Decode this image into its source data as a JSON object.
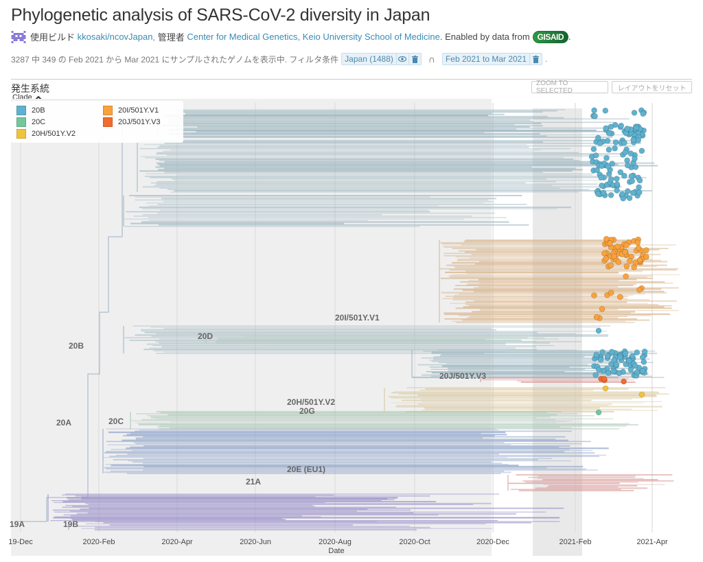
{
  "header": {
    "title": "Phylogenetic analysis of SARS-CoV-2 diversity in Japan",
    "build_prefix": "使用ビルド",
    "build_link": "kkosaki/ncovJapan",
    "maintainer_prefix": ". 管理者",
    "maintainer_link": "Center for Medical Genetics, Keio University School of Medicine",
    "data_prefix": ". Enabled by data from",
    "data_source": "GISAID",
    "data_suffix": "."
  },
  "filter": {
    "summary": "3287 中 349 の Feb 2021 から Mar 2021 にサンプルされたゲノムを表示中. フィルタ条件",
    "filters": [
      {
        "label": "Japan (1488)",
        "has_eye": true
      },
      {
        "label": "Feb 2021 to Mar 2021",
        "has_eye": false
      }
    ],
    "intersection_symbol": "∩",
    "suffix": "."
  },
  "panel": {
    "title": "発生系統",
    "zoom_button": "ZOOM TO SELECTED",
    "reset_button": "レイアウトをリセット",
    "legend_toggle": "Clade",
    "legend": [
      {
        "label": "20B",
        "color": "#5fb2cf"
      },
      {
        "label": "20C",
        "color": "#74c69d"
      },
      {
        "label": "20H/501Y.V2",
        "color": "#f3c23c"
      },
      {
        "label": "20I/501Y.V1",
        "color": "#f9a23c"
      },
      {
        "label": "20J/501Y.V3",
        "color": "#f26b2f"
      }
    ]
  },
  "chart_data": {
    "type": "phylogenetic-tree",
    "xlabel": "Date",
    "x_ticks": [
      "19-Dec",
      "2020-Feb",
      "2020-Apr",
      "2020-Jun",
      "2020-Aug",
      "2020-Oct",
      "2020-Dec",
      "2021-Feb",
      "2021-Apr"
    ],
    "x_range": [
      "2019-12",
      "2021-05"
    ],
    "selected_range": [
      "2021-01-20",
      "2021-03-01"
    ],
    "clade_labels": [
      "19A",
      "19B",
      "20A",
      "20B",
      "20C",
      "20D",
      "20G",
      "20H/501Y.V2",
      "20I/501Y.V1",
      "20J/501Y.V3",
      "20E (EU1)",
      "21A"
    ],
    "branch_colors": {
      "20B": "#98b3bd",
      "20I/501Y.V1": "#d7b38a",
      "20J/501Y.V3": "#98b3bd",
      "20H/501Y.V2": "#d9c69a",
      "20C": "#a9c6b3",
      "20E (EU1)": "#92a6cb",
      "21A": "#d79a98",
      "19A": "#9b91c9",
      "19B": "#9b91c9"
    },
    "tip_counts": {
      "20B": 220,
      "20I/501Y.V1": 70,
      "20J/501Y.V3": 4,
      "20H/501Y.V2": 2,
      "20C": 1
    }
  }
}
